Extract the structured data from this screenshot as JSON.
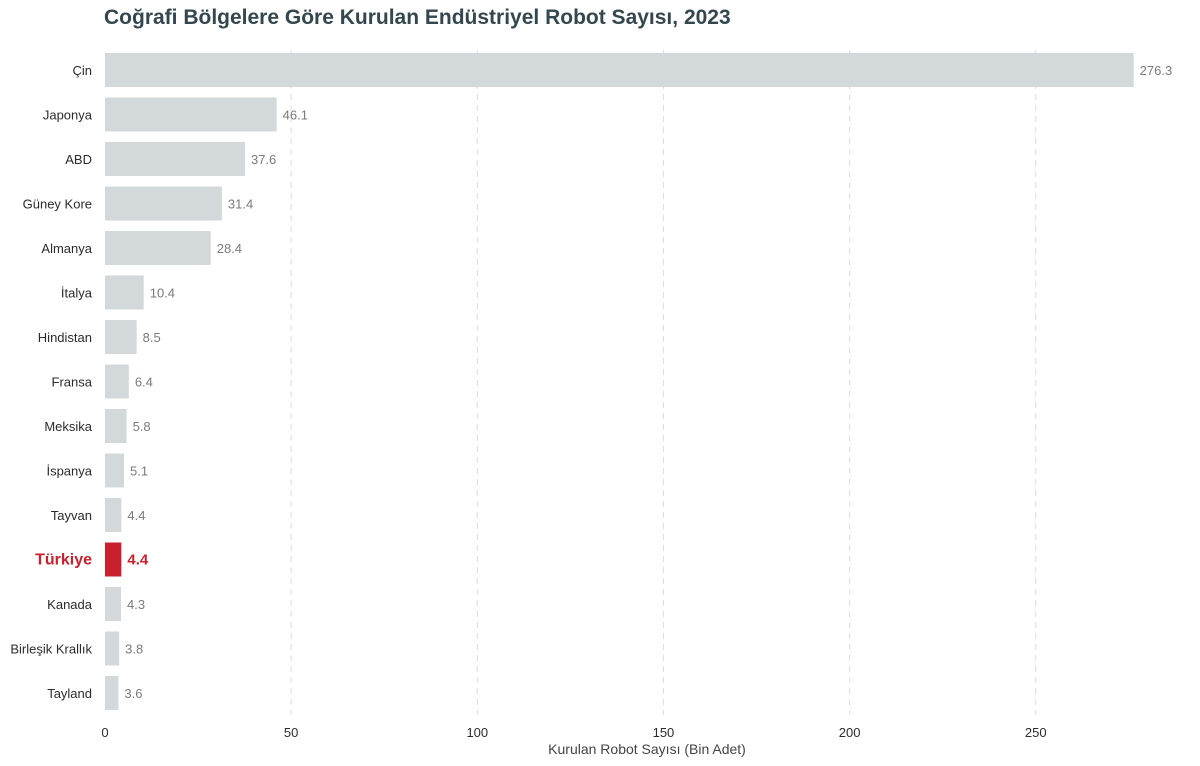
{
  "chart_data": {
    "type": "bar",
    "orientation": "horizontal",
    "title": "Coğrafi Bölgelere Göre Kurulan Endüstriyel Robot Sayısı, 2023",
    "xlabel": "Kurulan Robot Sayısı (Bin Adet)",
    "ylabel": "",
    "xlim": [
      0,
      278
    ],
    "xticks": [
      0,
      50,
      100,
      150,
      200,
      250
    ],
    "grid": "x-dashed",
    "categories": [
      "Çin",
      "Japonya",
      "ABD",
      "Güney Kore",
      "Almanya",
      "İtalya",
      "Hindistan",
      "Fransa",
      "Meksika",
      "İspanya",
      "Tayvan",
      "Türkiye",
      "Kanada",
      "Birleşik Krallık",
      "Tayland"
    ],
    "values": [
      276.3,
      46.1,
      37.6,
      31.4,
      28.4,
      10.4,
      8.5,
      6.4,
      5.8,
      5.1,
      4.4,
      4.4,
      4.3,
      3.8,
      3.6
    ],
    "value_labels": [
      "276.3",
      "46.1",
      "37.6",
      "31.4",
      "28.4",
      "10.4",
      "8.5",
      "6.4",
      "5.8",
      "5.1",
      "4.4",
      "4.4",
      "4.3",
      "3.8",
      "3.6"
    ],
    "highlight": "Türkiye",
    "colors": {
      "bar": "#d3d9db",
      "highlight": "#c8202d",
      "title": "#34474f"
    }
  }
}
